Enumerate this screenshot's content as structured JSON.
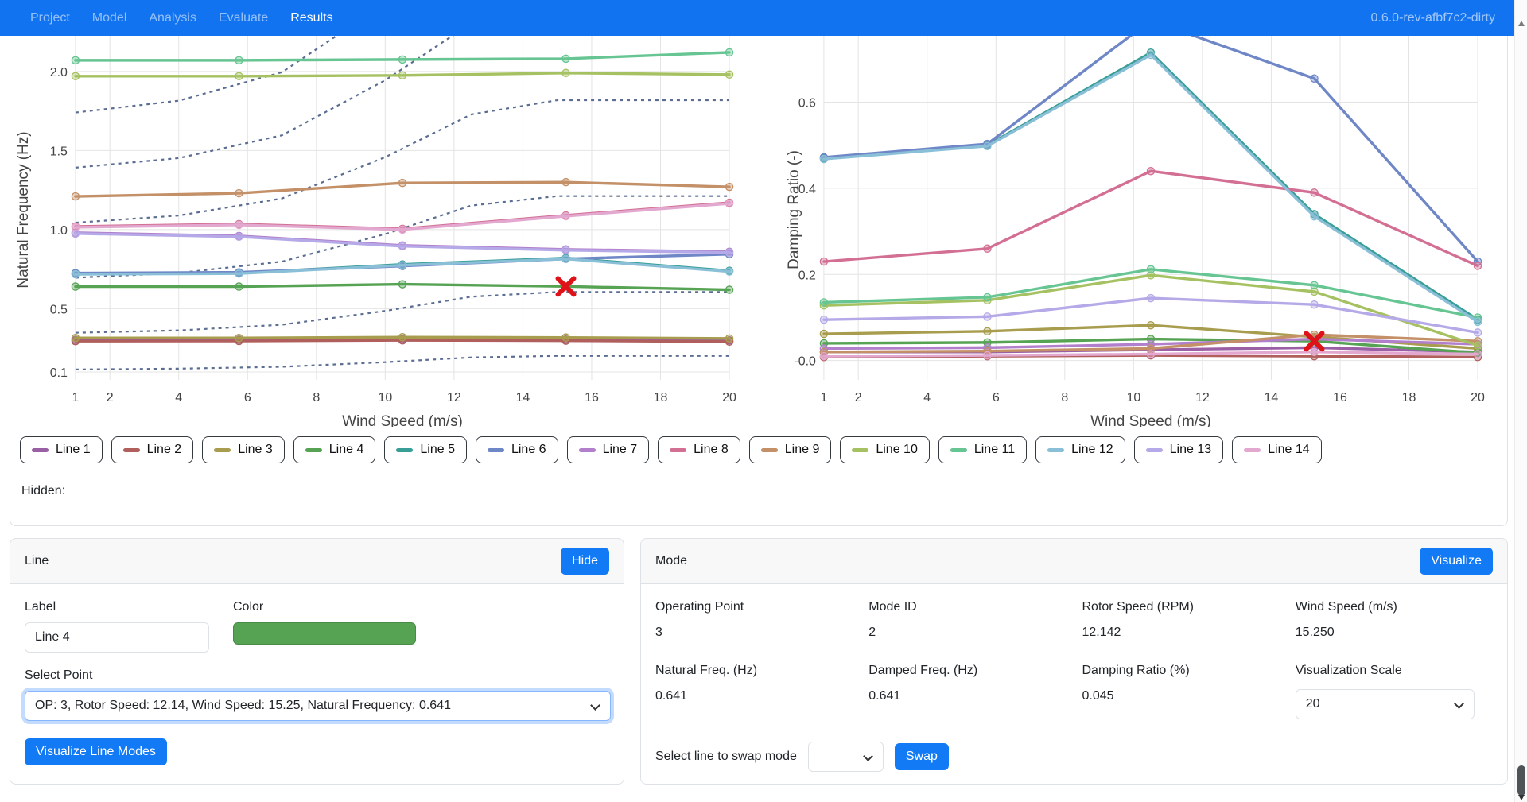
{
  "navbar": {
    "items": [
      {
        "label": "Project",
        "active": false
      },
      {
        "label": "Model",
        "active": false
      },
      {
        "label": "Analysis",
        "active": false
      },
      {
        "label": "Evaluate",
        "active": false
      },
      {
        "label": "Results",
        "active": true
      }
    ],
    "version": "0.6.0-rev-afbf7c2-dirty"
  },
  "legend": {
    "lines": [
      {
        "label": "Line 1",
        "color": "#9b5fa5"
      },
      {
        "label": "Line 2",
        "color": "#b05f5c"
      },
      {
        "label": "Line 3",
        "color": "#a89d4e"
      },
      {
        "label": "Line 4",
        "color": "#56a354"
      },
      {
        "label": "Line 5",
        "color": "#389e96"
      },
      {
        "label": "Line 6",
        "color": "#6f87c7"
      },
      {
        "label": "Line 7",
        "color": "#b17fcb"
      },
      {
        "label": "Line 8",
        "color": "#d36f93"
      },
      {
        "label": "Line 9",
        "color": "#c39068"
      },
      {
        "label": "Line 10",
        "color": "#a6c161"
      },
      {
        "label": "Line 11",
        "color": "#66c592"
      },
      {
        "label": "Line 12",
        "color": "#8abfd8"
      },
      {
        "label": "Line 13",
        "color": "#b5a9e8"
      },
      {
        "label": "Line 14",
        "color": "#e3a8d0"
      }
    ]
  },
  "hidden_label": "Hidden:",
  "chart_data": [
    {
      "type": "line",
      "title": "",
      "xlabel": "Wind Speed (m/s)",
      "ylabel": "Natural Frequency (Hz)",
      "xlim": [
        1,
        20
      ],
      "ylim": [
        0.05,
        2.2
      ],
      "x_ticks": [
        1,
        2,
        4,
        6,
        8,
        10,
        12,
        14,
        16,
        18,
        20
      ],
      "y_ticks": [
        0.1,
        0.5,
        1.0,
        1.5,
        2.0
      ],
      "y_tick_labels": [
        "0.1",
        "0.5",
        "1.0",
        "1.5",
        "2.0"
      ],
      "grid": true,
      "x": [
        1,
        5.75,
        10.5,
        15.25,
        20
      ],
      "series": [
        {
          "name": "Line 1",
          "values": [
            0.303,
            0.304,
            0.308,
            0.305,
            0.3
          ]
        },
        {
          "name": "Line 2",
          "values": [
            0.295,
            0.296,
            0.3,
            0.298,
            0.292
          ]
        },
        {
          "name": "Line 3",
          "values": [
            0.315,
            0.315,
            0.32,
            0.318,
            0.312
          ]
        },
        {
          "name": "Line 4",
          "values": [
            0.64,
            0.64,
            0.655,
            0.641,
            0.62
          ]
        },
        {
          "name": "Line 5",
          "values": [
            0.72,
            0.725,
            0.78,
            0.82,
            0.74
          ]
        },
        {
          "name": "Line 6",
          "values": [
            0.725,
            0.73,
            0.77,
            0.815,
            0.845
          ]
        },
        {
          "name": "Line 7",
          "values": [
            0.98,
            0.96,
            0.9,
            0.875,
            0.86
          ]
        },
        {
          "name": "Line 8",
          "values": [
            1.02,
            1.035,
            1.005,
            1.09,
            1.17
          ]
        },
        {
          "name": "Line 9",
          "values": [
            1.21,
            1.23,
            1.295,
            1.3,
            1.27
          ]
        },
        {
          "name": "Line 10",
          "values": [
            1.97,
            1.97,
            1.975,
            1.99,
            1.98
          ]
        },
        {
          "name": "Line 11",
          "values": [
            2.07,
            2.07,
            2.075,
            2.08,
            2.12
          ]
        },
        {
          "name": "Line 12",
          "values": [
            0.718,
            0.722,
            0.775,
            0.815,
            0.735
          ]
        },
        {
          "name": "Line 13",
          "values": [
            0.975,
            0.955,
            0.895,
            0.87,
            0.855
          ]
        },
        {
          "name": "Line 14",
          "values": [
            1.015,
            1.03,
            1.0,
            1.085,
            1.165
          ]
        }
      ],
      "harmonics": {
        "comment": "rotor-speed multiple lines (dashed)",
        "x": [
          1,
          4,
          7,
          10,
          12.5,
          15,
          20
        ],
        "omega": [
          0.116,
          0.121,
          0.133,
          0.162,
          0.192,
          0.202,
          0.202
        ],
        "multipliers": [
          1,
          3,
          6,
          9,
          12,
          15
        ],
        "style": "dashed",
        "color": "#5b6e92"
      },
      "annotations": [
        {
          "marker": "x",
          "x": 15.25,
          "y": 0.641,
          "color": "#e01219"
        }
      ]
    },
    {
      "type": "line",
      "title": "",
      "xlabel": "Wind Speed (m/s)",
      "ylabel": "Damping Ratio (-)",
      "xlim": [
        1,
        20
      ],
      "ylim": [
        -0.045,
        0.745
      ],
      "x_ticks": [
        1,
        2,
        4,
        6,
        8,
        10,
        12,
        14,
        16,
        18,
        20
      ],
      "y_ticks": [
        0,
        0.2,
        0.4,
        0.6
      ],
      "y_tick_labels": [
        "-0.0",
        "0.2",
        "0.4",
        "0.6"
      ],
      "grid": true,
      "x": [
        1,
        5.75,
        10.5,
        15.25,
        20
      ],
      "series": [
        {
          "name": "Line 1",
          "values": [
            0.02,
            0.02,
            0.025,
            0.03,
            0.02
          ]
        },
        {
          "name": "Line 2",
          "values": [
            0.008,
            0.01,
            0.012,
            0.01,
            0.008
          ]
        },
        {
          "name": "Line 3",
          "values": [
            0.062,
            0.068,
            0.082,
            0.055,
            0.028
          ]
        },
        {
          "name": "Line 4",
          "values": [
            0.04,
            0.042,
            0.05,
            0.045,
            0.018
          ]
        },
        {
          "name": "Line 5",
          "values": [
            0.47,
            0.5,
            0.715,
            0.34,
            0.095
          ]
        },
        {
          "name": "Line 6",
          "values": [
            0.472,
            0.503,
            0.79,
            0.655,
            0.23
          ]
        },
        {
          "name": "Line 7",
          "values": [
            0.028,
            0.03,
            0.038,
            0.05,
            0.038
          ]
        },
        {
          "name": "Line 8",
          "values": [
            0.23,
            0.26,
            0.44,
            0.39,
            0.22
          ]
        },
        {
          "name": "Line 9",
          "values": [
            0.02,
            0.022,
            0.028,
            0.06,
            0.045
          ]
        },
        {
          "name": "Line 10",
          "values": [
            0.128,
            0.14,
            0.198,
            0.16,
            0.035
          ]
        },
        {
          "name": "Line 11",
          "values": [
            0.135,
            0.147,
            0.212,
            0.175,
            0.1
          ]
        },
        {
          "name": "Line 12",
          "values": [
            0.468,
            0.498,
            0.71,
            0.335,
            0.09
          ]
        },
        {
          "name": "Line 13",
          "values": [
            0.095,
            0.102,
            0.145,
            0.13,
            0.065
          ]
        },
        {
          "name": "Line 14",
          "values": [
            0.01,
            0.012,
            0.015,
            0.02,
            0.015
          ]
        }
      ],
      "annotations": [
        {
          "marker": "x",
          "x": 15.25,
          "y": 0.045,
          "color": "#e01219"
        }
      ]
    }
  ],
  "line_panel": {
    "title": "Line",
    "hide_button": "Hide",
    "label_field": {
      "label": "Label",
      "value": "Line 4"
    },
    "color_field": {
      "label": "Color",
      "color": "#56a354"
    },
    "select_point": {
      "label": "Select Point",
      "value": "OP: 3, Rotor Speed: 12.14, Wind Speed: 15.25, Natural Frequency: 0.641"
    },
    "visualize_button": "Visualize Line Modes"
  },
  "mode_panel": {
    "title": "Mode",
    "visualize_button": "Visualize",
    "fields": [
      {
        "label": "Operating Point",
        "value": "3"
      },
      {
        "label": "Mode ID",
        "value": "2"
      },
      {
        "label": "Rotor Speed (RPM)",
        "value": "12.142"
      },
      {
        "label": "Wind Speed (m/s)",
        "value": "15.250"
      },
      {
        "label": "Natural Freq. (Hz)",
        "value": "0.641"
      },
      {
        "label": "Damped Freq. (Hz)",
        "value": "0.641"
      },
      {
        "label": "Damping Ratio (%)",
        "value": "0.045"
      },
      {
        "label": "Visualization Scale",
        "value": "20",
        "type": "select"
      }
    ],
    "swap": {
      "label": "Select line to swap mode",
      "select_value": "",
      "button": "Swap"
    }
  }
}
